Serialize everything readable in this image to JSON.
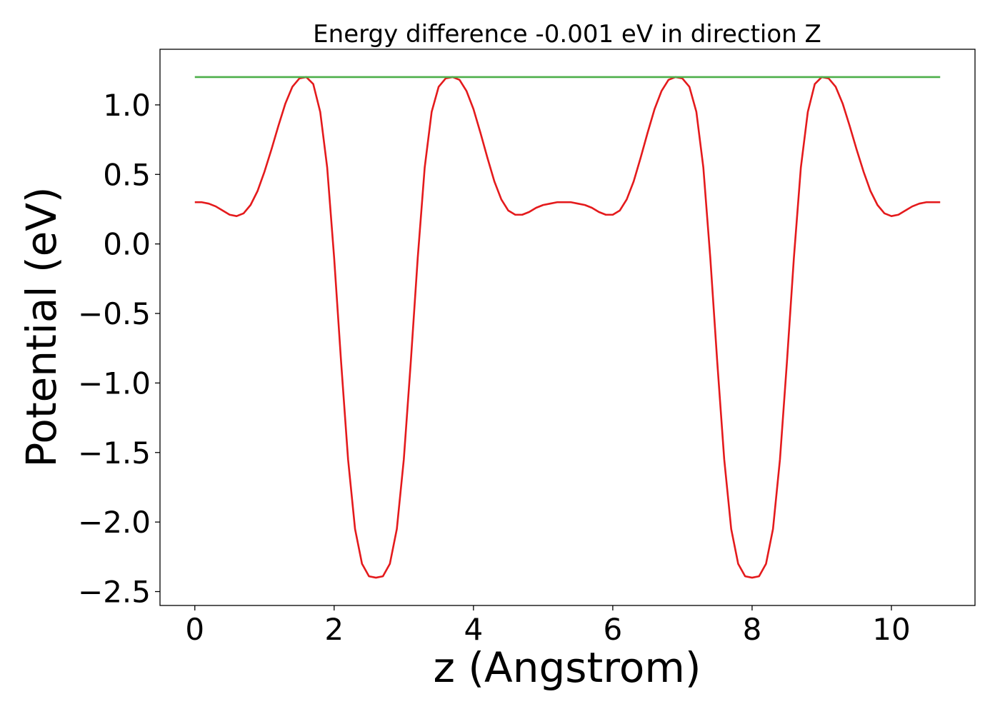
{
  "chart_data": {
    "type": "line",
    "title": "Energy difference -0.001 eV in direction Z",
    "xlabel": "z (Angstrom)",
    "ylabel": "Potential (eV)",
    "xlim": [
      -0.5,
      11.2
    ],
    "ylim": [
      -2.6,
      1.4
    ],
    "xticks": [
      0,
      2,
      4,
      6,
      8,
      10
    ],
    "xtick_labels": [
      "0",
      "2",
      "4",
      "6",
      "8",
      "10"
    ],
    "yticks": [
      1.0,
      0.5,
      0.0,
      -0.5,
      -1.0,
      -1.5,
      -2.0,
      -2.5
    ],
    "ytick_labels": [
      "1.0",
      "0.5",
      "0.0",
      "−0.5",
      "−1.0",
      "−1.5",
      "−2.0",
      "−2.5"
    ],
    "grid": false,
    "series": [
      {
        "color": "#e41a1c",
        "x": [
          0,
          0.1,
          0.2,
          0.3,
          0.4,
          0.5,
          0.6,
          0.7,
          0.8,
          0.9,
          1.0,
          1.1,
          1.2,
          1.3,
          1.4,
          1.5,
          1.6,
          1.7,
          1.8,
          1.9,
          2.0,
          2.1,
          2.2,
          2.3,
          2.4,
          2.5,
          2.6,
          2.7,
          2.8,
          2.9,
          3.0,
          3.1,
          3.2,
          3.3,
          3.4,
          3.5,
          3.6,
          3.7,
          3.8,
          3.9,
          4.0,
          4.1,
          4.2,
          4.3,
          4.4,
          4.5,
          4.6,
          4.7,
          4.8,
          4.9,
          5.0,
          5.1,
          5.2,
          5.3,
          5.4,
          5.5,
          5.6,
          5.7,
          5.8,
          5.9,
          6.0,
          6.1,
          6.2,
          6.3,
          6.4,
          6.5,
          6.6,
          6.7,
          6.8,
          6.9,
          7.0,
          7.1,
          7.2,
          7.3,
          7.4,
          7.5,
          7.6,
          7.7,
          7.8,
          7.9,
          8.0,
          8.1,
          8.2,
          8.3,
          8.4,
          8.5,
          8.6,
          8.7,
          8.8,
          8.9,
          9.0,
          9.1,
          9.2,
          9.3,
          9.4,
          9.5,
          9.6,
          9.7,
          9.8,
          9.9,
          10.0,
          10.1,
          10.2,
          10.3,
          10.4,
          10.5,
          10.6,
          10.7
        ],
        "y": [
          0.3,
          0.3,
          0.29,
          0.27,
          0.24,
          0.21,
          0.2,
          0.22,
          0.28,
          0.38,
          0.52,
          0.68,
          0.85,
          1.01,
          1.13,
          1.19,
          1.2,
          1.15,
          0.95,
          0.55,
          -0.1,
          -0.85,
          -1.55,
          -2.05,
          -2.3,
          -2.39,
          -2.4,
          -2.39,
          -2.3,
          -2.05,
          -1.55,
          -0.85,
          -0.1,
          0.55,
          0.95,
          1.13,
          1.19,
          1.2,
          1.18,
          1.1,
          0.97,
          0.8,
          0.62,
          0.45,
          0.32,
          0.24,
          0.21,
          0.21,
          0.23,
          0.26,
          0.28,
          0.29,
          0.3,
          0.3,
          0.3,
          0.29,
          0.28,
          0.26,
          0.23,
          0.21,
          0.21,
          0.24,
          0.32,
          0.45,
          0.62,
          0.8,
          0.97,
          1.1,
          1.18,
          1.2,
          1.19,
          1.13,
          0.95,
          0.55,
          -0.1,
          -0.85,
          -1.55,
          -2.05,
          -2.3,
          -2.39,
          -2.4,
          -2.39,
          -2.3,
          -2.05,
          -1.55,
          -0.85,
          -0.1,
          0.55,
          0.95,
          1.15,
          1.2,
          1.19,
          1.13,
          1.01,
          0.85,
          0.68,
          0.52,
          0.38,
          0.28,
          0.22,
          0.2,
          0.21,
          0.24,
          0.27,
          0.29,
          0.3,
          0.3,
          0.3
        ]
      },
      {
        "color": "#4daf4a",
        "x": [
          0,
          10.7
        ],
        "y": [
          1.2,
          1.2
        ]
      }
    ]
  }
}
